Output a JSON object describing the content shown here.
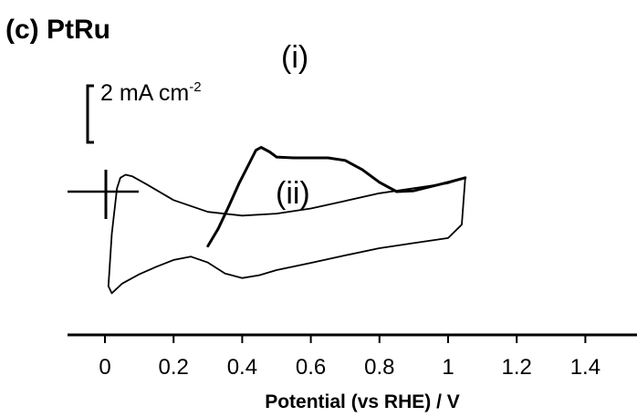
{
  "chart_data": {
    "type": "line",
    "title": "(c) PtRu",
    "xlabel": "Potential (vs RHE) / V",
    "ylabel": "",
    "xlim": [
      -0.1,
      1.45
    ],
    "x_ticks": [
      "0",
      "0.2",
      "0.4",
      "0.6",
      "0.8",
      "1",
      "1.2",
      "1.4"
    ],
    "scale_bar": {
      "value": "2 mA cm",
      "superscript": "-2"
    },
    "annotations": [
      "(i)",
      "(ii)"
    ],
    "series": [
      {
        "name": "(i)",
        "points": [
          [
            0.3,
            -3.22
          ],
          [
            0.33,
            -2.2
          ],
          [
            0.36,
            -0.9
          ],
          [
            0.39,
            0.45
          ],
          [
            0.42,
            1.65
          ],
          [
            0.44,
            2.45
          ],
          [
            0.455,
            2.62
          ],
          [
            0.48,
            2.35
          ],
          [
            0.5,
            2.05
          ],
          [
            0.55,
            2.0
          ],
          [
            0.6,
            2.0
          ],
          [
            0.65,
            2.0
          ],
          [
            0.7,
            1.85
          ],
          [
            0.75,
            1.3
          ],
          [
            0.8,
            0.55
          ],
          [
            0.85,
            0.0
          ],
          [
            0.9,
            0.05
          ],
          [
            0.95,
            0.3
          ],
          [
            1.0,
            0.55
          ],
          [
            1.05,
            0.82
          ]
        ]
      },
      {
        "name": "(ii)",
        "points": [
          [
            1.05,
            0.82
          ],
          [
            1.04,
            -1.95
          ],
          [
            1.0,
            -2.75
          ],
          [
            0.9,
            -3.05
          ],
          [
            0.8,
            -3.35
          ],
          [
            0.7,
            -3.78
          ],
          [
            0.6,
            -4.22
          ],
          [
            0.5,
            -4.65
          ],
          [
            0.45,
            -4.95
          ],
          [
            0.4,
            -5.12
          ],
          [
            0.35,
            -4.85
          ],
          [
            0.3,
            -4.2
          ],
          [
            0.25,
            -3.85
          ],
          [
            0.2,
            -4.05
          ],
          [
            0.15,
            -4.45
          ],
          [
            0.1,
            -4.9
          ],
          [
            0.05,
            -5.45
          ],
          [
            0.02,
            -6.02
          ],
          [
            0.01,
            -5.6
          ],
          [
            0.02,
            -2.5
          ],
          [
            0.035,
            0.2
          ],
          [
            0.045,
            0.82
          ],
          [
            0.06,
            1.0
          ],
          [
            0.08,
            0.9
          ],
          [
            0.12,
            0.45
          ],
          [
            0.2,
            -0.5
          ],
          [
            0.3,
            -1.2
          ],
          [
            0.4,
            -1.42
          ],
          [
            0.5,
            -1.3
          ],
          [
            0.6,
            -1.0
          ],
          [
            0.7,
            -0.55
          ],
          [
            0.8,
            -0.1
          ],
          [
            0.9,
            0.2
          ],
          [
            1.0,
            0.5
          ],
          [
            1.05,
            0.82
          ]
        ]
      }
    ]
  }
}
